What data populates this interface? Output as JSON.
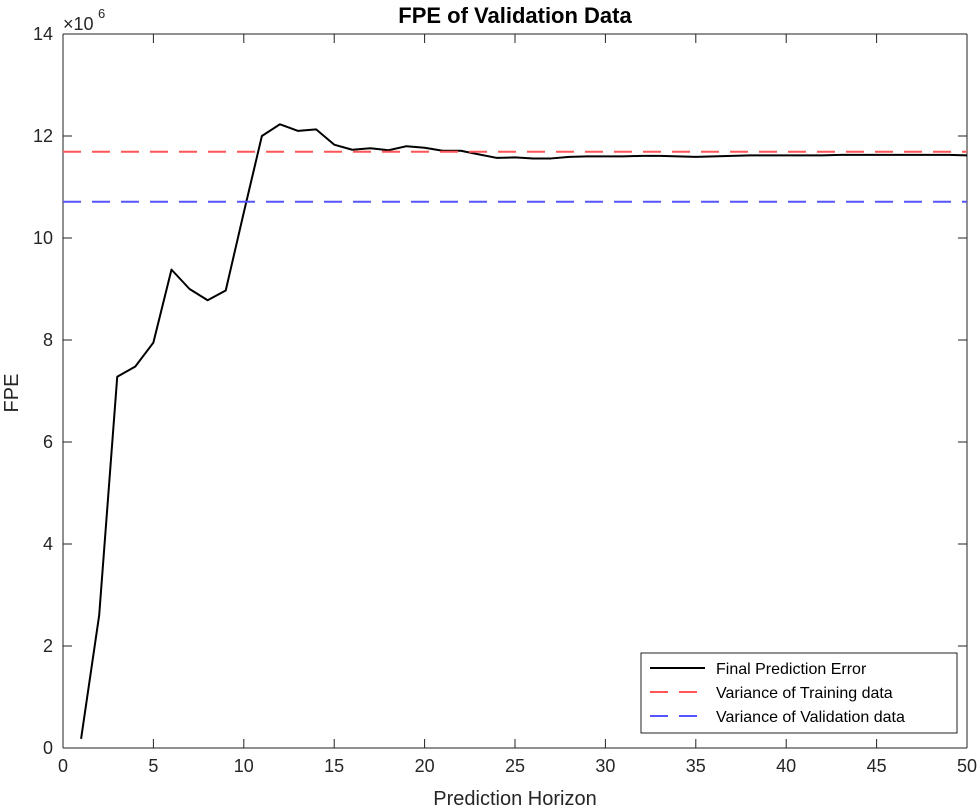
{
  "chart_data": {
    "type": "line",
    "title": "FPE of Validation Data",
    "xlabel": "Prediction Horizon",
    "ylabel": "FPE",
    "y_exponent_label": "×10",
    "y_exponent_power": "6",
    "xlim": [
      0,
      50
    ],
    "ylim": [
      0,
      14
    ],
    "xticks": [
      "0",
      "5",
      "10",
      "15",
      "20",
      "25",
      "30",
      "35",
      "40",
      "45",
      "50"
    ],
    "yticks": [
      "0",
      "2",
      "4",
      "6",
      "8",
      "10",
      "12",
      "14"
    ],
    "grid": false,
    "legend_position": "bottom-right",
    "series": [
      {
        "name": "Final Prediction Error",
        "style": "solid",
        "color": "#000000",
        "x": [
          1,
          2,
          3,
          4,
          5,
          6,
          7,
          8,
          9,
          10,
          11,
          12,
          13,
          14,
          15,
          16,
          17,
          18,
          19,
          20,
          21,
          22,
          23,
          24,
          25,
          26,
          27,
          28,
          29,
          30,
          31,
          32,
          33,
          34,
          35,
          36,
          37,
          38,
          39,
          40,
          41,
          42,
          43,
          44,
          45,
          46,
          47,
          48,
          49,
          50
        ],
        "values": [
          0.18,
          2.6,
          7.28,
          7.48,
          7.95,
          9.38,
          9.0,
          8.78,
          8.97,
          10.5,
          12.0,
          12.23,
          12.1,
          12.13,
          11.83,
          11.73,
          11.76,
          11.72,
          11.8,
          11.77,
          11.71,
          11.71,
          11.64,
          11.57,
          11.58,
          11.56,
          11.56,
          11.59,
          11.6,
          11.6,
          11.6,
          11.61,
          11.61,
          11.6,
          11.59,
          11.6,
          11.61,
          11.62,
          11.62,
          11.62,
          11.62,
          11.62,
          11.63,
          11.63,
          11.63,
          11.63,
          11.63,
          11.63,
          11.63,
          11.62
        ]
      },
      {
        "name": "Variance of Training data",
        "style": "dashed",
        "color": "#ff5555",
        "x": [
          0,
          50
        ],
        "values": [
          11.69,
          11.69
        ]
      },
      {
        "name": "Variance of Validation data",
        "style": "dashed",
        "color": "#5555ff",
        "x": [
          0,
          50
        ],
        "values": [
          10.71,
          10.71
        ]
      }
    ]
  }
}
